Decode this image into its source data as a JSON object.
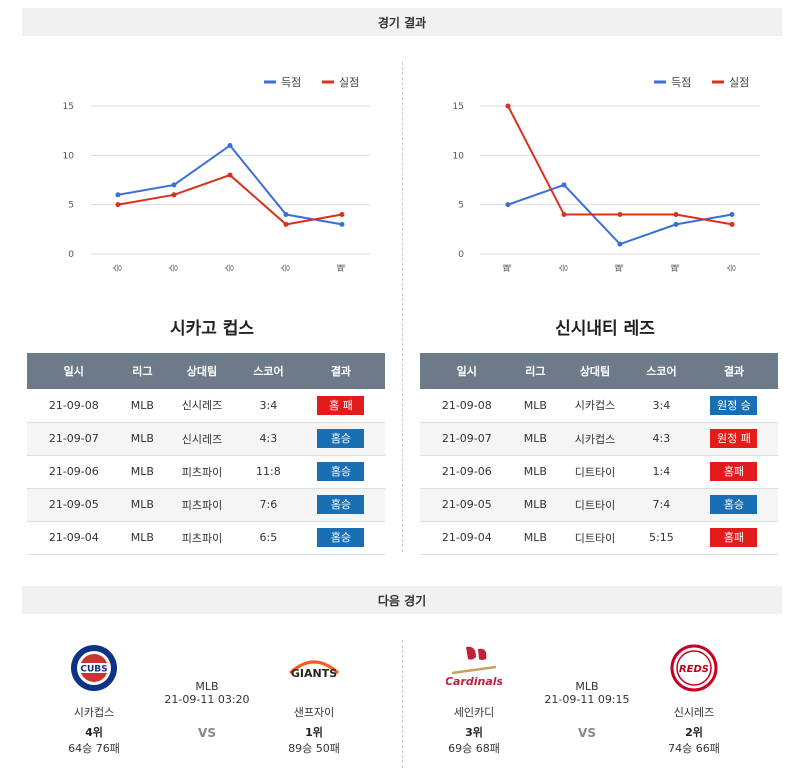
{
  "sections": {
    "results_title": "경기 결과",
    "next_title": "다음 경기"
  },
  "legend": {
    "scored": "득점",
    "conceded": "실점"
  },
  "colors": {
    "scored": "#3a6fd8",
    "conceded": "#d9311c",
    "win": "#1a6fb4",
    "loss": "#e21b1b"
  },
  "chart_data": [
    {
      "type": "line",
      "categories": [
        "승",
        "승",
        "승",
        "승",
        "패"
      ],
      "series": [
        {
          "name": "득점",
          "values": [
            6,
            7,
            11,
            4,
            3
          ]
        },
        {
          "name": "실점",
          "values": [
            5,
            6,
            8,
            3,
            4
          ]
        }
      ],
      "yticks": [
        0,
        5,
        10,
        15
      ],
      "ylim": [
        0,
        15
      ],
      "grid": true,
      "legend_position": "top-right"
    },
    {
      "type": "line",
      "categories": [
        "패",
        "승",
        "패",
        "패",
        "승"
      ],
      "series": [
        {
          "name": "득점",
          "values": [
            5,
            7,
            1,
            3,
            4
          ]
        },
        {
          "name": "실점",
          "values": [
            15,
            4,
            4,
            4,
            3
          ]
        }
      ],
      "yticks": [
        0,
        5,
        10,
        15
      ],
      "ylim": [
        0,
        15
      ],
      "grid": true,
      "legend_position": "top-right"
    }
  ],
  "teams": {
    "left": {
      "title": "시카고 컵스",
      "headers": [
        "일시",
        "리그",
        "상대팀",
        "스코어",
        "결과"
      ],
      "rows": [
        {
          "date": "21-09-08",
          "league": "MLB",
          "opponent": "신시레즈",
          "score": "3:4",
          "result": "홈 패",
          "win": false
        },
        {
          "date": "21-09-07",
          "league": "MLB",
          "opponent": "신시레즈",
          "score": "4:3",
          "result": "홈승",
          "win": true
        },
        {
          "date": "21-09-06",
          "league": "MLB",
          "opponent": "피츠파이",
          "score": "11:8",
          "result": "홈승",
          "win": true
        },
        {
          "date": "21-09-05",
          "league": "MLB",
          "opponent": "피츠파이",
          "score": "7:6",
          "result": "홈승",
          "win": true
        },
        {
          "date": "21-09-04",
          "league": "MLB",
          "opponent": "피츠파이",
          "score": "6:5",
          "result": "홈승",
          "win": true
        }
      ]
    },
    "right": {
      "title": "신시내티 레즈",
      "headers": [
        "일시",
        "리그",
        "상대팀",
        "스코어",
        "결과"
      ],
      "rows": [
        {
          "date": "21-09-08",
          "league": "MLB",
          "opponent": "시카컵스",
          "score": "3:4",
          "result": "원정 승",
          "win": true
        },
        {
          "date": "21-09-07",
          "league": "MLB",
          "opponent": "시카컵스",
          "score": "4:3",
          "result": "원정 패",
          "win": false
        },
        {
          "date": "21-09-06",
          "league": "MLB",
          "opponent": "디트타이",
          "score": "1:4",
          "result": "홈패",
          "win": false
        },
        {
          "date": "21-09-05",
          "league": "MLB",
          "opponent": "디트타이",
          "score": "7:4",
          "result": "홈승",
          "win": true
        },
        {
          "date": "21-09-04",
          "league": "MLB",
          "opponent": "디트타이",
          "score": "5:15",
          "result": "홈패",
          "win": false
        }
      ]
    }
  },
  "next_games": [
    {
      "league": "MLB",
      "datetime": "21-09-11 03:20",
      "vs": "VS",
      "home": {
        "name": "시카컵스",
        "rank": "4위",
        "record": "64승 76패",
        "logo_icon": "cubs-logo-icon",
        "logo_text": "CUBS"
      },
      "away": {
        "name": "샌프자이",
        "rank": "1위",
        "record": "89승 50패",
        "logo_icon": "giants-logo-icon",
        "logo_text": "GIANTS"
      }
    },
    {
      "league": "MLB",
      "datetime": "21-09-11 09:15",
      "vs": "VS",
      "home": {
        "name": "세인카디",
        "rank": "3위",
        "record": "69승 68패",
        "logo_icon": "cardinals-logo-icon",
        "logo_text": "Cardinals"
      },
      "away": {
        "name": "신시레즈",
        "rank": "2위",
        "record": "74승 66패",
        "logo_icon": "reds-logo-icon",
        "logo_text": "REDS"
      }
    }
  ]
}
